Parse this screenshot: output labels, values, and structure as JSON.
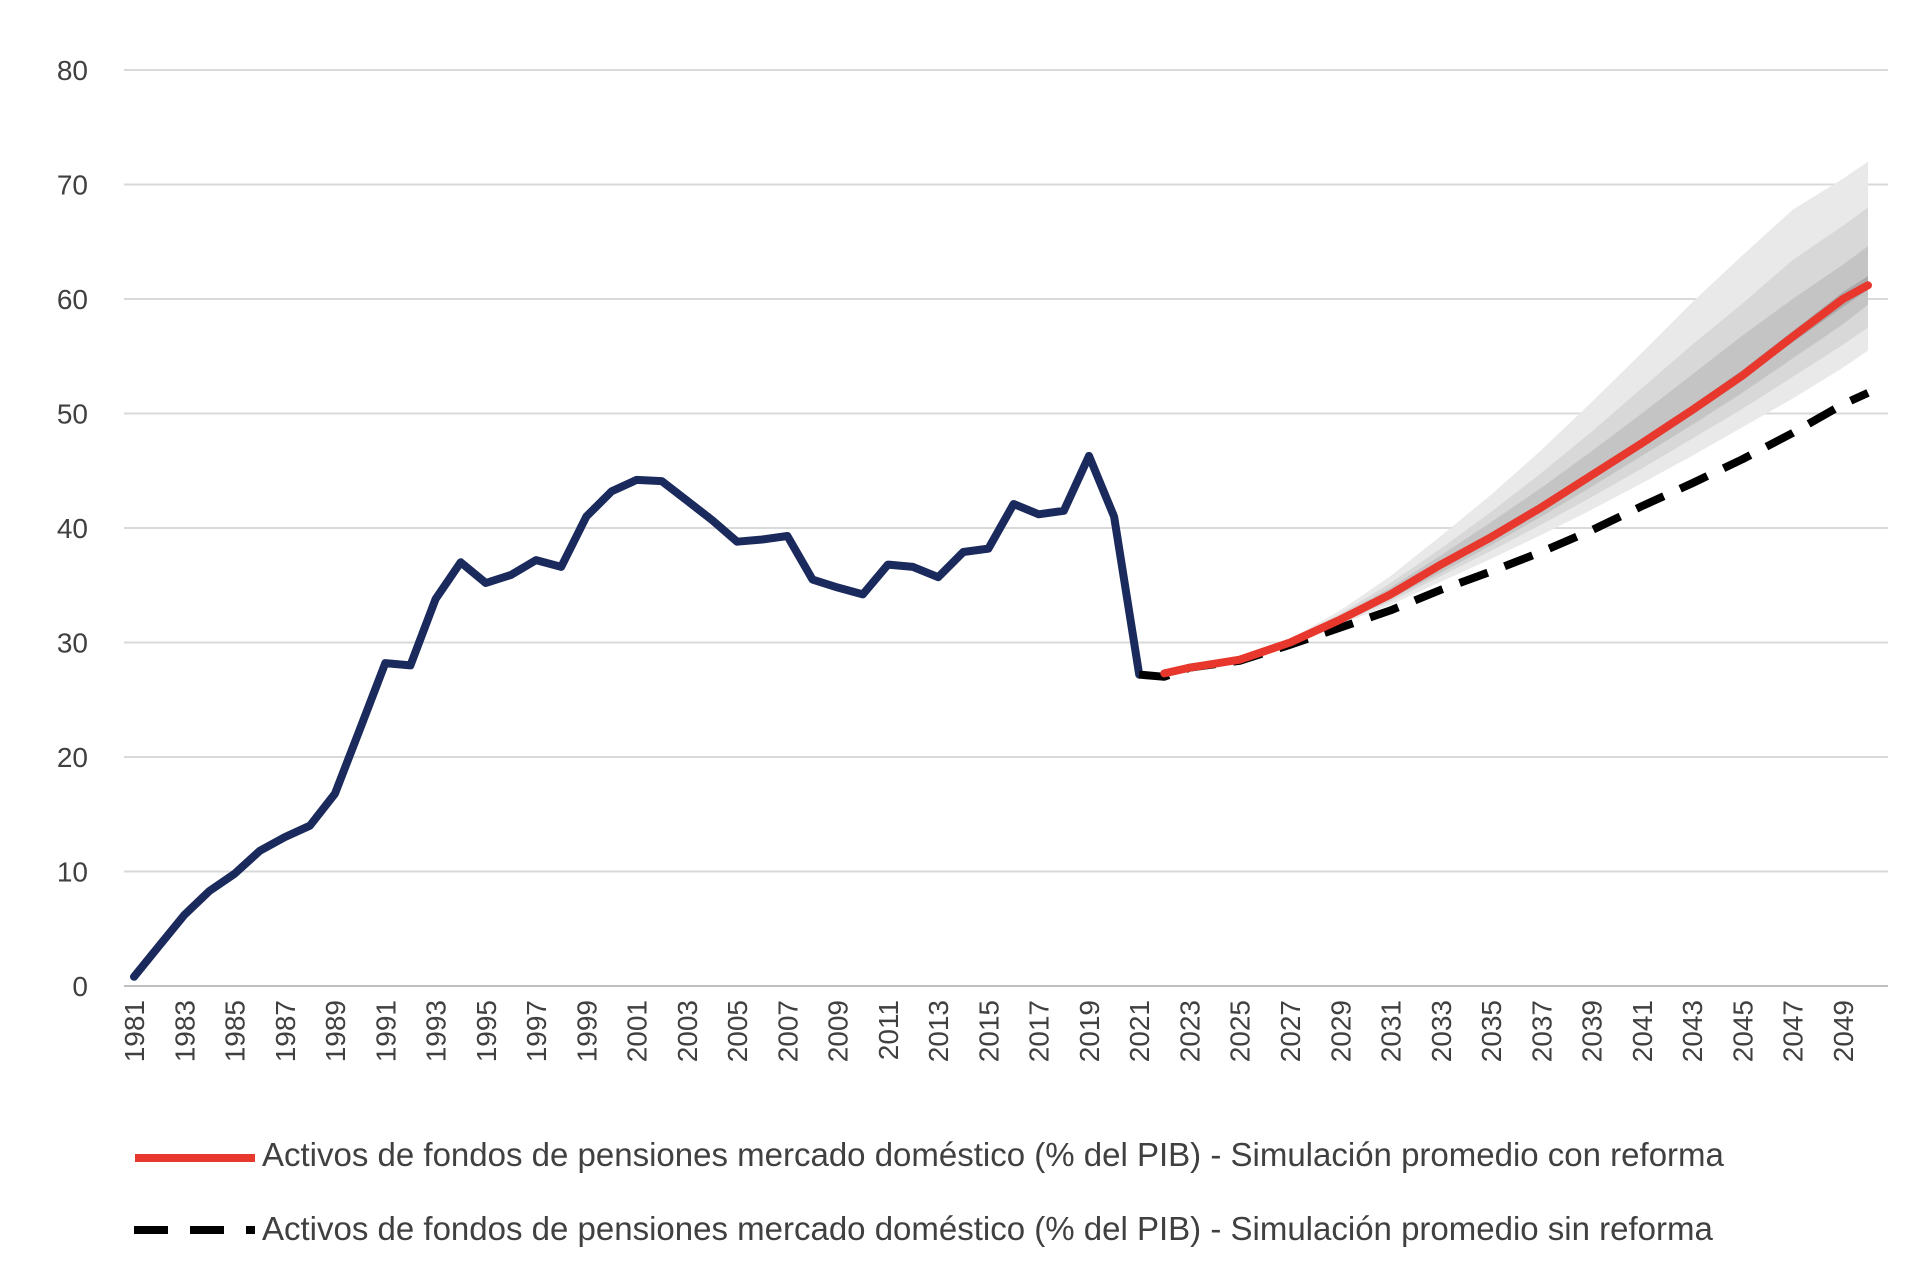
{
  "chart_data": {
    "type": "line",
    "x_start": 1981,
    "x_end": 2050,
    "ylim": [
      0,
      80
    ],
    "yticks": [
      0,
      10,
      20,
      30,
      40,
      50,
      60,
      70,
      80
    ],
    "xticks": [
      1981,
      1983,
      1985,
      1987,
      1989,
      1991,
      1993,
      1995,
      1997,
      1999,
      2001,
      2003,
      2005,
      2007,
      2009,
      2011,
      2013,
      2015,
      2017,
      2019,
      2021,
      2023,
      2025,
      2027,
      2029,
      2031,
      2033,
      2035,
      2037,
      2039,
      2041,
      2043,
      2045,
      2047,
      2049
    ],
    "grid": true,
    "legend_position": "bottom",
    "series": [
      {
        "color": "#1b2a5c",
        "style": "solid",
        "x": [
          1981,
          1982,
          1983,
          1984,
          1985,
          1986,
          1987,
          1988,
          1989,
          1990,
          1991,
          1992,
          1993,
          1994,
          1995,
          1996,
          1997,
          1998,
          1999,
          2000,
          2001,
          2002,
          2003,
          2004,
          2005,
          2006,
          2007,
          2008,
          2009,
          2010,
          2011,
          2012,
          2013,
          2014,
          2015,
          2016,
          2017,
          2018,
          2019,
          2020,
          2021
        ],
        "values": [
          0.8,
          3.5,
          6.2,
          8.3,
          9.8,
          11.8,
          13.0,
          14.0,
          16.8,
          22.5,
          28.2,
          28.0,
          33.8,
          37.0,
          35.2,
          35.9,
          37.2,
          36.6,
          41.0,
          43.2,
          44.2,
          44.1,
          42.4,
          40.7,
          38.8,
          39.0,
          39.3,
          35.5,
          34.8,
          34.2,
          36.8,
          36.6,
          35.7,
          37.9,
          38.2,
          42.1,
          41.2,
          41.5,
          46.3,
          41.0,
          27.2
        ]
      },
      {
        "name": "Activos de fondos de pensiones mercado doméstico (% del PIB) - Simulación promedio con reforma",
        "color": "#e8372d",
        "style": "solid",
        "x": [
          2022,
          2023,
          2025,
          2027,
          2029,
          2031,
          2033,
          2035,
          2037,
          2039,
          2041,
          2043,
          2045,
          2047,
          2049,
          2050
        ],
        "values": [
          27.3,
          27.8,
          28.5,
          30.0,
          32.0,
          34.2,
          36.8,
          39.2,
          41.8,
          44.6,
          47.4,
          50.3,
          53.3,
          56.7,
          60.0,
          61.2
        ]
      },
      {
        "name": "Activos de fondos de pensiones mercado doméstico (% del PIB) - Simulación promedio sin reforma",
        "color": "#000000",
        "style": "dashed",
        "x": [
          2021,
          2022,
          2023,
          2025,
          2027,
          2029,
          2031,
          2033,
          2035,
          2037,
          2039,
          2041,
          2043,
          2045,
          2047,
          2049,
          2050
        ],
        "values": [
          27.2,
          27.0,
          27.8,
          28.4,
          29.8,
          31.3,
          32.8,
          34.6,
          36.2,
          37.9,
          39.8,
          41.9,
          43.9,
          46.0,
          48.3,
          50.8,
          51.8
        ]
      }
    ],
    "bands": {
      "x": [
        2023,
        2025,
        2027,
        2029,
        2031,
        2033,
        2035,
        2037,
        2039,
        2041,
        2043,
        2045,
        2047,
        2049,
        2050
      ],
      "colors": [
        "#e9e9e9",
        "#d8d8d8",
        "#c4c4c4",
        "#a9a9a9"
      ],
      "layers": [
        {
          "lower": [
            27.8,
            28.5,
            29.9,
            31.6,
            33.3,
            35.3,
            37.3,
            39.4,
            41.6,
            43.9,
            46.3,
            48.8,
            51.3,
            54.0,
            55.5
          ],
          "upper": [
            27.8,
            28.6,
            30.3,
            32.8,
            35.8,
            39.3,
            42.9,
            46.8,
            51.0,
            55.3,
            59.7,
            63.8,
            67.8,
            70.5,
            72.0
          ]
        },
        {
          "lower": [
            27.8,
            28.5,
            29.9,
            31.7,
            33.6,
            35.8,
            38.0,
            40.3,
            42.7,
            45.2,
            47.8,
            50.4,
            53.2,
            56.0,
            57.5
          ],
          "upper": [
            27.8,
            28.6,
            30.2,
            32.5,
            35.2,
            38.2,
            41.4,
            44.8,
            48.4,
            52.2,
            56.0,
            59.6,
            63.4,
            66.4,
            68.0
          ]
        },
        {
          "lower": [
            27.8,
            28.5,
            29.9,
            31.8,
            33.8,
            36.1,
            38.5,
            41.0,
            43.6,
            46.3,
            49.0,
            51.8,
            54.8,
            57.8,
            59.5
          ],
          "upper": [
            27.8,
            28.6,
            30.1,
            32.3,
            34.8,
            37.6,
            40.5,
            43.5,
            46.7,
            50.0,
            53.4,
            56.8,
            60.0,
            63.0,
            64.6
          ]
        },
        {
          "lower": [
            27.8,
            28.5,
            30.0,
            31.9,
            34.0,
            36.5,
            39.0,
            41.6,
            44.4,
            47.2,
            50.1,
            53.0,
            56.2,
            59.3,
            60.8
          ],
          "upper": [
            27.8,
            28.5,
            30.0,
            32.1,
            34.4,
            37.1,
            39.6,
            42.2,
            45.0,
            47.8,
            50.7,
            53.8,
            57.2,
            60.6,
            62.0
          ]
        }
      ]
    }
  },
  "legend": {
    "item1_label": "Activos de fondos de pensiones mercado doméstico (% del PIB) - Simulación promedio con reforma",
    "item2_label": "Activos de fondos de pensiones mercado doméstico (% del PIB) - Simulación promedio sin reforma"
  }
}
